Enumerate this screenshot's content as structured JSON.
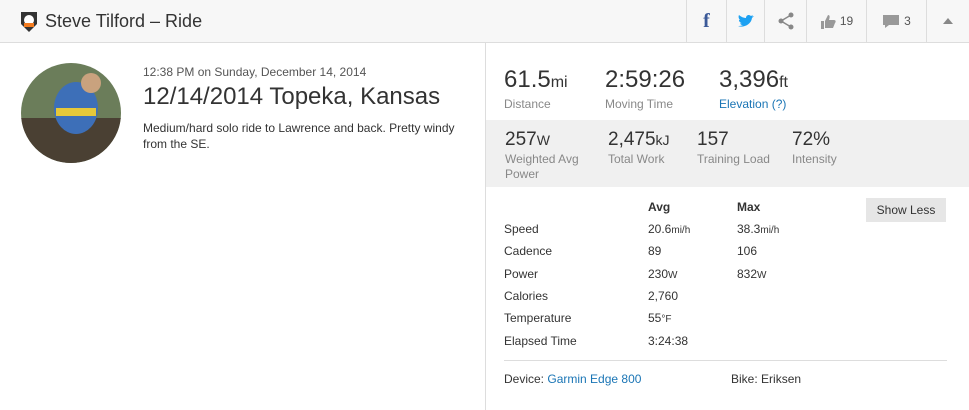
{
  "header": {
    "title": "Steve Tilford – Ride",
    "likes": "19",
    "comments": "3"
  },
  "activity": {
    "timestamp": "12:38 PM on Sunday, December 14, 2014",
    "title": "12/14/2014 Topeka, Kansas",
    "description": [
      "Medium/hard solo ride to Lawrence and back.  Pretty windy",
      "from the SE."
    ]
  },
  "primary_stats": [
    {
      "value": "61.5",
      "unit": "mi",
      "label": "Distance"
    },
    {
      "value": "2:59:26",
      "label": "Moving Time"
    },
    {
      "value": "3,396",
      "unit": "ft",
      "label": "Elevation (?)"
    }
  ],
  "secondary_stats": [
    {
      "value": "257",
      "unit": "W",
      "label": [
        "Weighted Avg",
        "Power"
      ]
    },
    {
      "value": "2,475",
      "unit": "kJ",
      "label": [
        "Total Work"
      ]
    },
    {
      "value": "157",
      "label": [
        "Training Load"
      ]
    },
    {
      "value": "72%",
      "label": [
        "Intensity"
      ]
    }
  ],
  "table": {
    "headers": [
      "Avg",
      "Max"
    ],
    "rows": [
      [
        {
          "label": "Speed"
        },
        {
          "value": "20.6",
          "unit": "mi/h"
        },
        {
          "value": "38.3",
          "unit": "mi/h"
        }
      ],
      [
        {
          "label": "Cadence"
        },
        {
          "value": "89"
        },
        {
          "value": "106"
        }
      ],
      [
        {
          "label": "Power"
        },
        {
          "value": "230",
          "unit": "W"
        },
        {
          "value": "832",
          "unit": "W"
        }
      ],
      [
        {
          "label": "Calories"
        },
        {
          "value": "2,760"
        }
      ],
      [
        {
          "label": "Temperature"
        },
        {
          "value": "55",
          "unit": "°F"
        }
      ],
      [
        {
          "label": "Elapsed Time"
        },
        {
          "value": "3:24:38"
        }
      ]
    ]
  },
  "button": "Show Less",
  "device": {
    "label": "Device:",
    "value": "Garmin Edge 800"
  },
  "bike": {
    "label": "Bike:",
    "value": "Eriksen"
  }
}
